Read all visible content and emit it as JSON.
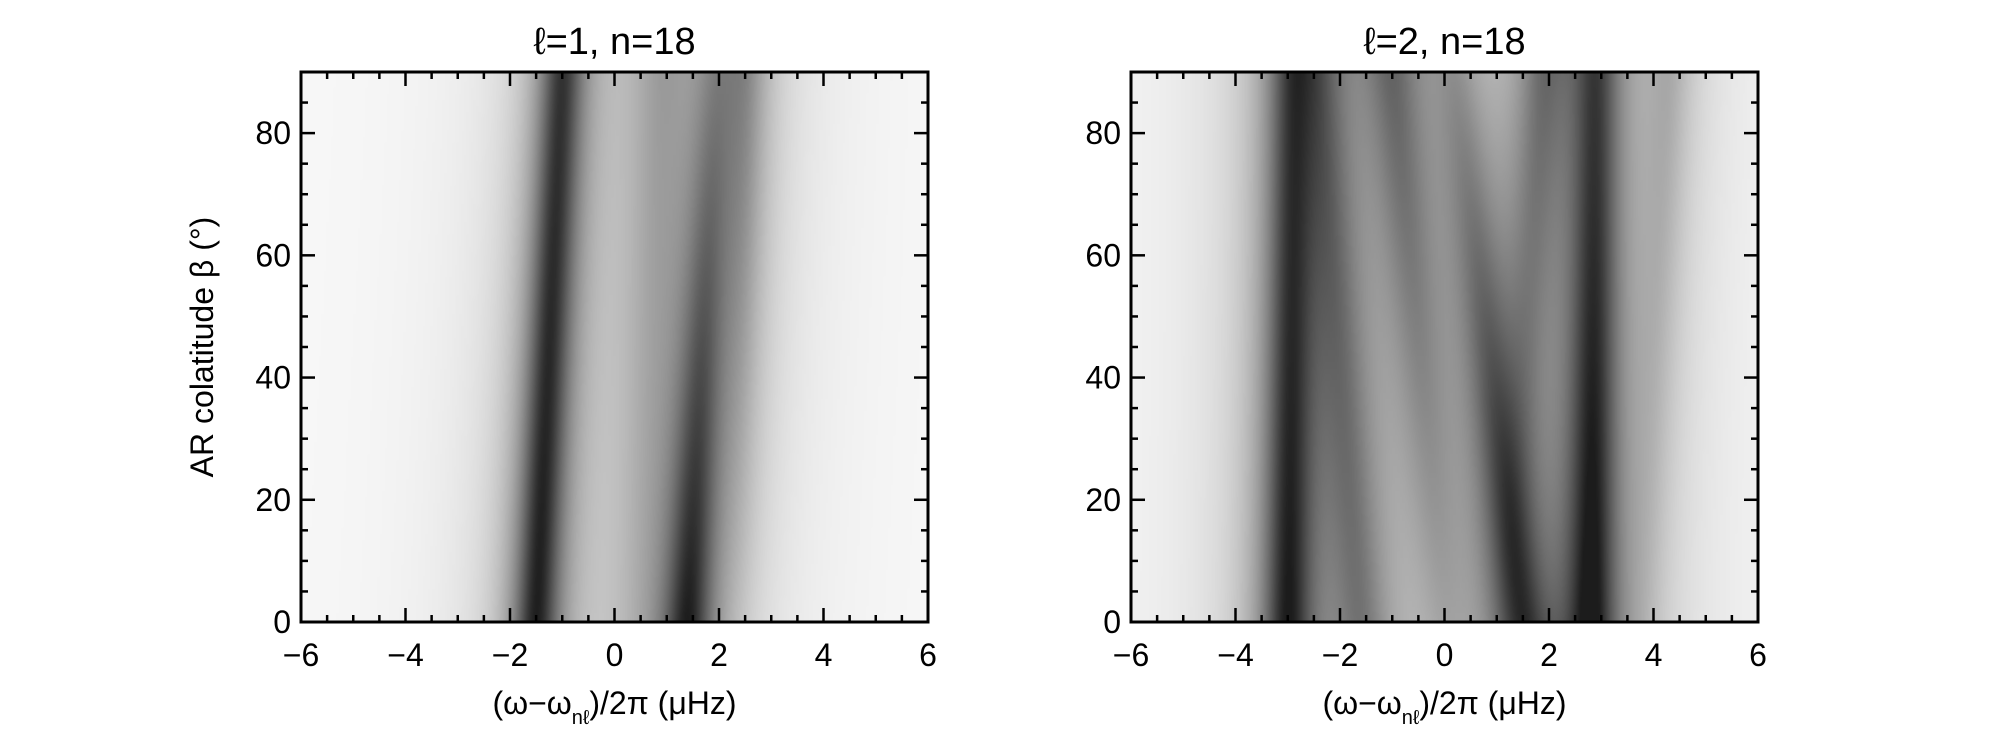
{
  "chart_data": [
    {
      "type": "heatmap",
      "title": "ℓ=1, n=18",
      "xlabel": {
        "pre": "(ω−ω",
        "sub": "nℓ",
        "post": ")/2π (μHz)"
      },
      "ylabel": "AR colatitude β (°)",
      "xlim": [
        -6,
        6
      ],
      "ylim": [
        0,
        90
      ],
      "xticks": [
        -6,
        -4,
        -2,
        0,
        2,
        4,
        6
      ],
      "yticks": [
        0,
        20,
        40,
        60,
        80
      ],
      "xticklabels": [
        "−6",
        "−4",
        "−2",
        "0",
        "2",
        "4",
        "6"
      ],
      "yticklabels": [
        "0",
        "20",
        "40",
        "60",
        "80"
      ],
      "colormap": "greyscale, darker = higher power",
      "ridges": [
        {
          "x_at_0": -1.5,
          "x_at_90": -1.0,
          "width_uHz": 0.45,
          "strength_at_0": 0.95,
          "strength_at_90": 0.85
        },
        {
          "x_at_0": 1.4,
          "x_at_90": 1.95,
          "width_uHz": 0.5,
          "strength_at_0": 0.92,
          "strength_at_90": 0.3
        },
        {
          "x_at_0": 0.5,
          "x_at_90": 0.9,
          "width_uHz": 0.7,
          "strength_at_0": 0.12,
          "strength_at_90": 0.3
        },
        {
          "x_at_0": 2.3,
          "x_at_90": 2.5,
          "width_uHz": 0.5,
          "strength_at_0": 0.05,
          "strength_at_90": 0.35
        }
      ]
    },
    {
      "type": "heatmap",
      "title": "ℓ=2, n=18",
      "xlabel": {
        "pre": "(ω−ω",
        "sub": "nℓ",
        "post": ")/2π (μHz)"
      },
      "ylabel": "",
      "xlim": [
        -6,
        6
      ],
      "ylim": [
        0,
        90
      ],
      "xticks": [
        -6,
        -4,
        -2,
        0,
        2,
        4,
        6
      ],
      "yticks": [
        0,
        20,
        40,
        60,
        80
      ],
      "xticklabels": [
        "−6",
        "−4",
        "−2",
        "0",
        "2",
        "4",
        "6"
      ],
      "yticklabels": [
        "0",
        "20",
        "40",
        "60",
        "80"
      ],
      "colormap": "greyscale, darker = higher power",
      "ridges": [
        {
          "x_at_0": -3.0,
          "x_at_90": -2.9,
          "width_uHz": 0.5,
          "strength_at_0": 0.92,
          "strength_at_90": 0.65
        },
        {
          "x_at_0": 2.8,
          "x_at_90": 2.9,
          "width_uHz": 0.5,
          "strength_at_0": 0.95,
          "strength_at_90": 0.72
        },
        {
          "x_at_0": -1.6,
          "x_at_90": -2.4,
          "width_uHz": 0.6,
          "strength_at_0": 0.45,
          "strength_at_90": 0.4
        },
        {
          "x_at_0": 1.5,
          "x_at_90": 0.2,
          "width_uHz": 0.55,
          "strength_at_0": 0.7,
          "strength_at_90": 0.28
        },
        {
          "x_at_0": 0.0,
          "x_at_90": -1.0,
          "width_uHz": 0.6,
          "strength_at_0": 0.18,
          "strength_at_90": 0.5
        },
        {
          "x_at_0": 1.2,
          "x_at_90": 1.9,
          "width_uHz": 0.55,
          "strength_at_0": 0.1,
          "strength_at_90": 0.45
        },
        {
          "x_at_0": 3.8,
          "x_at_90": 4.3,
          "width_uHz": 0.5,
          "strength_at_0": 0.1,
          "strength_at_90": 0.25
        }
      ]
    }
  ]
}
